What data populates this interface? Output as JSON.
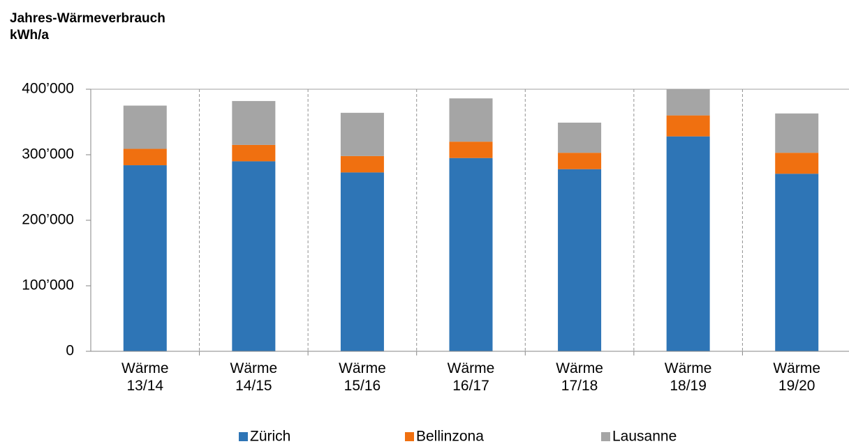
{
  "chart_data": {
    "type": "stacked_bar",
    "title": "Jahres-Wärmeverbrauch",
    "y_label": "kWh/a",
    "categories": [
      "Wärme 13/14",
      "Wärme 14/15",
      "Wärme 15/16",
      "Wärme 16/17",
      "Wärme 17/18",
      "Wärme 18/19",
      "Wärme 19/20"
    ],
    "series": [
      {
        "name": "Zürich",
        "color": "#2e75b6",
        "values": [
          284000,
          290000,
          273000,
          295000,
          278000,
          328000,
          271000
        ]
      },
      {
        "name": "Bellinzona",
        "color": "#f07010",
        "values": [
          25000,
          25000,
          25000,
          25000,
          25000,
          32000,
          32000
        ]
      },
      {
        "name": "Lausanne",
        "color": "#a5a5a5",
        "values": [
          66000,
          67000,
          66000,
          66000,
          46000,
          41000,
          60000
        ]
      }
    ],
    "ylim": [
      0,
      400000
    ],
    "yticks": [
      0,
      {
        "value": 100000,
        "label": "100’000"
      },
      {
        "value": 200000,
        "label": "200’000"
      },
      {
        "value": 300000,
        "label": "300’000"
      },
      {
        "value": 400000,
        "label": "400’000"
      }
    ],
    "grid": "x-dashed",
    "legend": "bottom"
  }
}
